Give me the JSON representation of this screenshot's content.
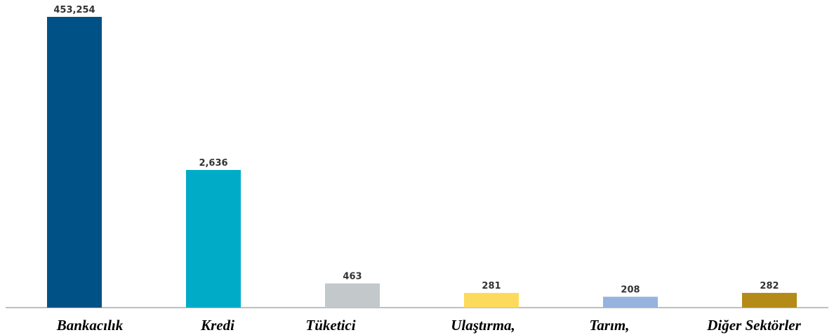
{
  "chart_data": {
    "type": "bar",
    "categories": [
      "Bankacılık",
      "Kredi",
      "Tüketici",
      "Ulaştırma,",
      "Tarım,",
      "Diğer Sektörler"
    ],
    "values": [
      453254,
      2636,
      463,
      281,
      208,
      282
    ],
    "value_labels": [
      "453,254",
      "2,636",
      "463",
      "281",
      "208",
      "282"
    ],
    "scale": "broken",
    "colors": [
      "#005186",
      "#00abc8",
      "#c3c8cb",
      "#fcdb5c",
      "#96b3de",
      "#b48b17"
    ],
    "title": "",
    "xlabel": "",
    "ylabel": "",
    "grid": false,
    "legend": "none"
  }
}
